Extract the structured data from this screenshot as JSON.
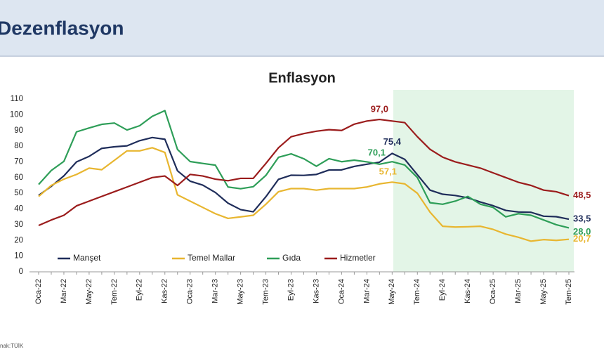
{
  "header": {
    "title": "Dezenflasyon"
  },
  "footer": {
    "source": "nak:TÜİK"
  },
  "chart_data": {
    "type": "line",
    "title": "Enflasyon",
    "categories": [
      "Oca-22",
      null,
      "Mar-22",
      null,
      "May-22",
      null,
      "Tem-22",
      null,
      "Eyl-22",
      null,
      "Kas-22",
      null,
      "Oca-23",
      null,
      "Mar-23",
      null,
      "May-23",
      null,
      "Tem-23",
      null,
      "Eyl-23",
      null,
      "Kas-23",
      null,
      "Oca-24",
      null,
      "Mar-24",
      null,
      "May-24",
      null,
      "Tem-24",
      null,
      "Eyl-24",
      null,
      "Kas-24",
      null,
      "Oca-25",
      null,
      "Mar-25",
      null,
      "May-25",
      null,
      "Tem-25"
    ],
    "series": [
      {
        "name": "Manşet",
        "color": "#1f2d5a",
        "values": [
          48.7,
          54.4,
          61.1,
          70.0,
          73.5,
          78.6,
          79.6,
          80.2,
          83.5,
          85.5,
          84.4,
          64.3,
          57.7,
          55.2,
          50.5,
          43.7,
          39.6,
          38.2,
          47.8,
          58.9,
          61.5,
          61.4,
          62.0,
          64.8,
          64.9,
          67.1,
          68.5,
          69.8,
          75.4,
          71.6,
          61.8,
          52.0,
          49.4,
          48.6,
          47.1,
          44.4,
          42.1,
          39.1,
          38.1,
          37.9,
          35.4,
          35.1,
          33.5
        ],
        "value_labels": [
          null,
          null,
          null,
          null,
          null,
          null,
          null,
          null,
          null,
          null,
          null,
          null,
          null,
          null,
          null,
          null,
          null,
          null,
          null,
          null,
          null,
          null,
          null,
          null,
          null,
          null,
          null,
          null,
          "75,4",
          null,
          null,
          null,
          null,
          null,
          null,
          null,
          null,
          null,
          null,
          null,
          null,
          null,
          "33,5"
        ]
      },
      {
        "name": "Temel Mallar",
        "color": "#e8b630",
        "values": [
          48,
          55,
          59,
          62,
          66,
          65,
          71,
          77,
          77,
          79,
          76,
          49,
          45,
          41,
          37,
          34,
          35,
          36,
          43,
          51,
          53,
          53,
          52,
          53,
          53,
          53,
          54,
          56,
          57.1,
          56,
          50,
          38,
          29,
          28.5,
          28.7,
          29,
          27,
          24,
          22,
          19.5,
          20.5,
          20,
          20.7
        ],
        "value_labels": [
          null,
          null,
          null,
          null,
          null,
          null,
          null,
          null,
          null,
          null,
          null,
          null,
          null,
          null,
          null,
          null,
          null,
          null,
          null,
          null,
          null,
          null,
          null,
          null,
          null,
          null,
          null,
          null,
          "57,1",
          null,
          null,
          null,
          null,
          null,
          null,
          null,
          null,
          null,
          null,
          null,
          null,
          null,
          "20,7"
        ]
      },
      {
        "name": "Gıda",
        "color": "#2e9e58",
        "values": [
          55.6,
          64.5,
          70.3,
          89.1,
          91.6,
          93.9,
          94.7,
          90.3,
          93.0,
          99.0,
          102.6,
          77.9,
          70.2,
          69.0,
          67.9,
          54.0,
          52.9,
          54.2,
          61.4,
          72.9,
          75.1,
          72.0,
          67.2,
          72.0,
          70.1,
          71.1,
          70.0,
          68.5,
          70.1,
          68.0,
          60.0,
          44.0,
          43.0,
          45.0,
          48.0,
          43.0,
          41.0,
          35.0,
          37.0,
          36.0,
          33.0,
          30.0,
          28.0
        ],
        "value_labels": [
          null,
          null,
          null,
          null,
          null,
          null,
          null,
          null,
          null,
          null,
          null,
          null,
          null,
          null,
          null,
          null,
          null,
          null,
          null,
          null,
          null,
          null,
          null,
          null,
          null,
          null,
          null,
          null,
          "70,1",
          null,
          null,
          null,
          null,
          null,
          null,
          null,
          null,
          null,
          null,
          null,
          null,
          null,
          "28,0"
        ]
      },
      {
        "name": "Hizmetler",
        "color": "#9b1c1c",
        "values": [
          29.5,
          33,
          36,
          42,
          45,
          48,
          51,
          54,
          57,
          60,
          61,
          55,
          62,
          61,
          59,
          58,
          59.5,
          59.5,
          69,
          79,
          86,
          88,
          89.5,
          90.5,
          90,
          94,
          96,
          97.0,
          96,
          95,
          86,
          78,
          73,
          70,
          68,
          66,
          63,
          60,
          57,
          55,
          52,
          51,
          48.5
        ],
        "value_labels": [
          null,
          null,
          null,
          null,
          null,
          null,
          null,
          null,
          null,
          null,
          null,
          null,
          null,
          null,
          null,
          null,
          null,
          null,
          null,
          null,
          null,
          null,
          null,
          null,
          null,
          null,
          null,
          "97,0",
          null,
          null,
          null,
          null,
          null,
          null,
          null,
          null,
          null,
          null,
          null,
          null,
          null,
          null,
          "48,5"
        ]
      }
    ],
    "ylim": [
      0,
      110
    ],
    "yticks": [
      0,
      10,
      20,
      30,
      40,
      50,
      60,
      70,
      80,
      90,
      100,
      110
    ],
    "grid": false,
    "legend": "bottom-left"
  }
}
